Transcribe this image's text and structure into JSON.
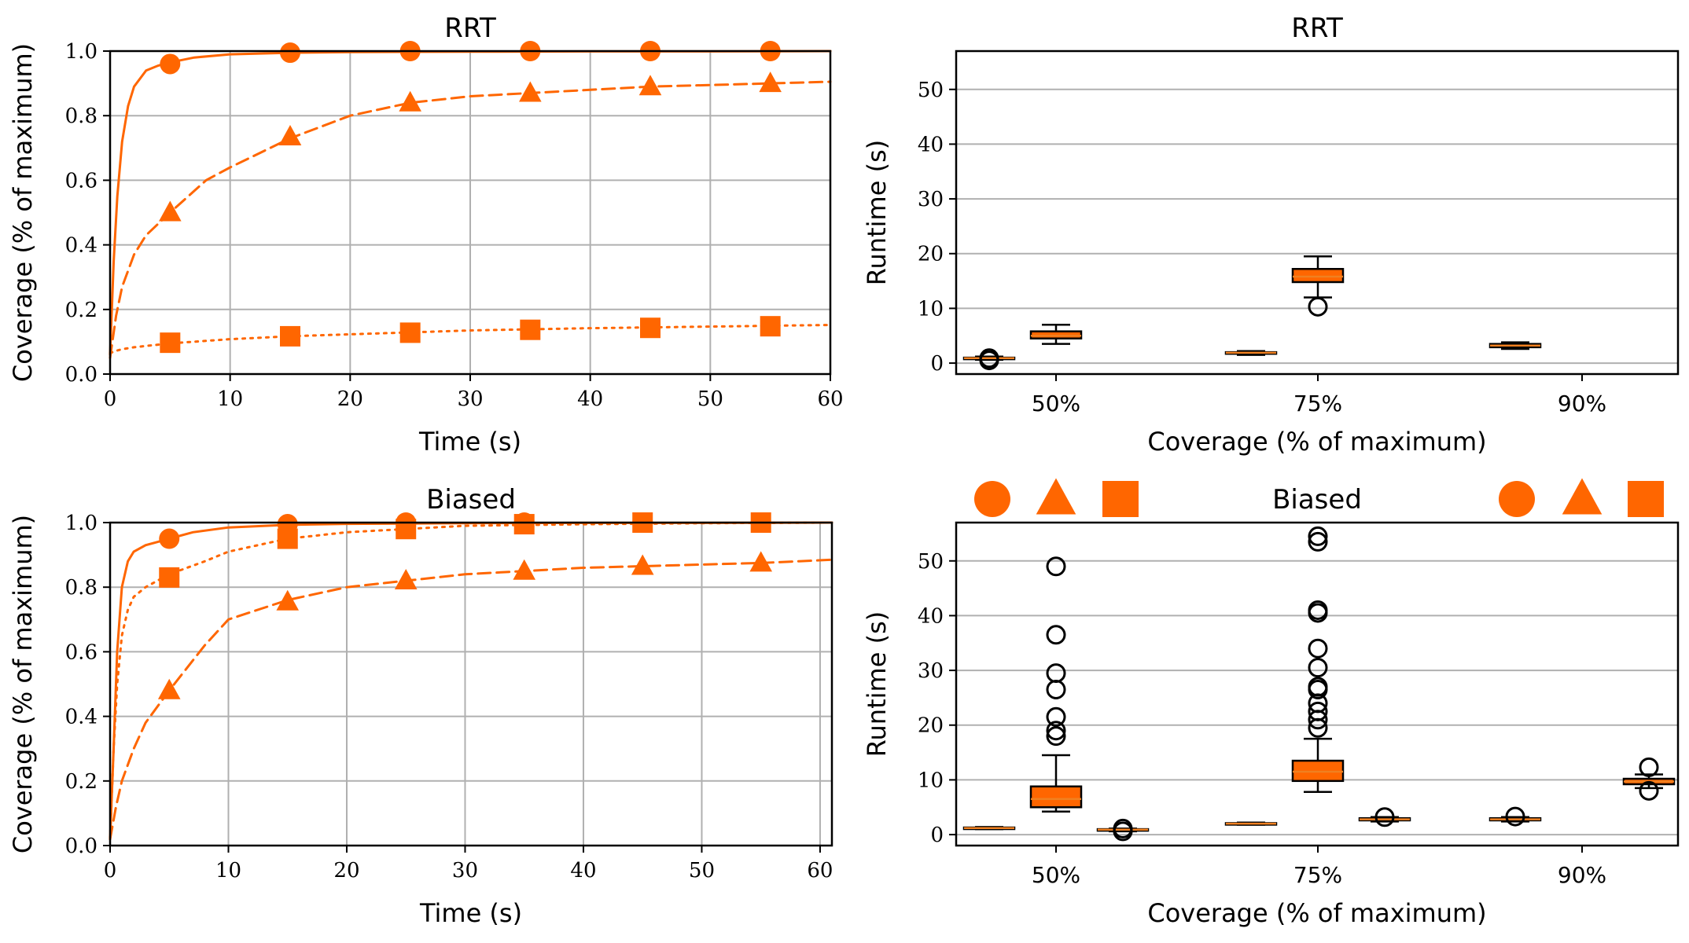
{
  "chart_data": [
    {
      "id": "tl",
      "type": "line",
      "title": "RRT",
      "xlabel": "Time (s)",
      "ylabel": "Coverage (% of maximum)",
      "xlim": [
        0,
        60
      ],
      "ylim": [
        0,
        1
      ],
      "xticks": [
        0,
        10,
        20,
        30,
        40,
        50,
        60
      ],
      "yticks": [
        0.0,
        0.2,
        0.4,
        0.6,
        0.8,
        1.0
      ],
      "xtick_labels": [
        "0",
        "10",
        "20",
        "30",
        "40",
        "50",
        "60"
      ],
      "ytick_labels": [
        "0.0",
        "0.2",
        "0.4",
        "0.6",
        "0.8",
        "1.0"
      ],
      "color": "#ff6600",
      "series": [
        {
          "marker": "circle",
          "style": "solid",
          "x": [
            0,
            0.3,
            0.6,
            1,
            1.5,
            2,
            3,
            4,
            5,
            7,
            10,
            15,
            20,
            30,
            40,
            50,
            60
          ],
          "y": [
            0.06,
            0.35,
            0.55,
            0.72,
            0.83,
            0.89,
            0.94,
            0.955,
            0.965,
            0.98,
            0.99,
            0.995,
            0.997,
            0.998,
            0.999,
            0.999,
            1.0
          ],
          "marker_x": [
            5,
            15,
            25,
            35,
            45,
            55
          ],
          "marker_y": [
            0.96,
            0.995,
            1.0,
            1.0,
            1.0,
            1.0
          ]
        },
        {
          "marker": "triangle",
          "style": "dashed",
          "x": [
            0,
            0.5,
            1,
            2,
            3,
            5,
            8,
            10,
            15,
            20,
            25,
            30,
            35,
            40,
            45,
            50,
            55,
            60
          ],
          "y": [
            0.05,
            0.18,
            0.27,
            0.37,
            0.43,
            0.5,
            0.6,
            0.64,
            0.73,
            0.8,
            0.84,
            0.86,
            0.87,
            0.88,
            0.89,
            0.895,
            0.9,
            0.905
          ],
          "marker_x": [
            5,
            15,
            25,
            35,
            45,
            55
          ],
          "marker_y": [
            0.5,
            0.735,
            0.84,
            0.87,
            0.89,
            0.9
          ]
        },
        {
          "marker": "square",
          "style": "dotted",
          "x": [
            0,
            0.5,
            1,
            2,
            3,
            5,
            10,
            15,
            20,
            30,
            40,
            50,
            60
          ],
          "y": [
            0.065,
            0.072,
            0.077,
            0.083,
            0.087,
            0.095,
            0.108,
            0.117,
            0.123,
            0.135,
            0.142,
            0.147,
            0.152
          ],
          "marker_x": [
            5,
            15,
            25,
            35,
            45,
            55
          ],
          "marker_y": [
            0.097,
            0.117,
            0.128,
            0.137,
            0.143,
            0.148
          ]
        }
      ]
    },
    {
      "id": "tr",
      "type": "box",
      "title": "RRT",
      "xlabel": "Coverage (% of maximum)",
      "ylabel": "Runtime (s)",
      "ylim": [
        -2,
        57
      ],
      "yticks": [
        0,
        10,
        20,
        30,
        40,
        50
      ],
      "ytick_labels": [
        "0",
        "10",
        "20",
        "30",
        "40",
        "50"
      ],
      "categories": [
        "50%",
        "75%",
        "90%"
      ],
      "boxes": [
        {
          "group": 0,
          "offset": -1,
          "min": 0.6,
          "q1": 0.8,
          "median": 0.9,
          "q3": 1.0,
          "max": 1.2,
          "fliers": [
            0.5,
            0.9
          ]
        },
        {
          "group": 0,
          "offset": 0,
          "min": 3.5,
          "q1": 4.5,
          "median": 5.0,
          "q3": 5.8,
          "max": 7.0,
          "fliers": []
        },
        {
          "group": 1,
          "offset": -1,
          "min": 1.5,
          "q1": 1.7,
          "median": 1.9,
          "q3": 2.0,
          "max": 2.2,
          "fliers": []
        },
        {
          "group": 1,
          "offset": 0,
          "min": 12.0,
          "q1": 14.8,
          "median": 15.8,
          "q3": 17.2,
          "max": 19.5,
          "fliers": [
            10.3
          ]
        },
        {
          "group": 2,
          "offset": -1,
          "min": 2.6,
          "q1": 2.9,
          "median": 3.2,
          "q3": 3.5,
          "max": 3.8,
          "fliers": []
        }
      ]
    },
    {
      "id": "bl",
      "type": "line",
      "title": "Biased",
      "xlabel": "Time (s)",
      "ylabel": "Coverage (% of maximum)",
      "xlim": [
        0,
        61
      ],
      "ylim": [
        0,
        1
      ],
      "xticks": [
        0,
        10,
        20,
        30,
        40,
        50,
        60
      ],
      "yticks": [
        0.0,
        0.2,
        0.4,
        0.6,
        0.8,
        1.0
      ],
      "xtick_labels": [
        "0",
        "10",
        "20",
        "30",
        "40",
        "50",
        "60"
      ],
      "ytick_labels": [
        "0.0",
        "0.2",
        "0.4",
        "0.6",
        "0.8",
        "1.0"
      ],
      "color": "#ff6600",
      "series": [
        {
          "marker": "circle",
          "style": "solid",
          "x": [
            0,
            0.3,
            0.6,
            1,
            1.5,
            2,
            3,
            4,
            5,
            7,
            10,
            15,
            20,
            30,
            40,
            50,
            61
          ],
          "y": [
            0.02,
            0.3,
            0.6,
            0.8,
            0.88,
            0.91,
            0.93,
            0.94,
            0.95,
            0.97,
            0.985,
            0.993,
            0.996,
            0.998,
            0.999,
            0.999,
            1.0
          ],
          "marker_x": [
            5,
            15,
            25,
            35,
            45,
            55
          ],
          "marker_y": [
            0.95,
            0.995,
            1.0,
            1.0,
            1.0,
            1.0
          ]
        },
        {
          "marker": "triangle",
          "style": "dashed",
          "x": [
            0,
            0.5,
            1,
            2,
            3,
            5,
            8,
            10,
            15,
            20,
            25,
            30,
            35,
            40,
            45,
            50,
            55,
            61
          ],
          "y": [
            0.02,
            0.12,
            0.2,
            0.3,
            0.38,
            0.48,
            0.62,
            0.7,
            0.76,
            0.8,
            0.82,
            0.84,
            0.85,
            0.86,
            0.865,
            0.87,
            0.875,
            0.885
          ],
          "marker_x": [
            5,
            15,
            25,
            35,
            45,
            55
          ],
          "marker_y": [
            0.48,
            0.755,
            0.82,
            0.85,
            0.865,
            0.875
          ]
        },
        {
          "marker": "square",
          "style": "dotted",
          "x": [
            0,
            0.3,
            0.6,
            1,
            1.5,
            2,
            3,
            5,
            8,
            10,
            15,
            20,
            30,
            40,
            50,
            61
          ],
          "y": [
            0.02,
            0.3,
            0.5,
            0.65,
            0.73,
            0.77,
            0.8,
            0.84,
            0.88,
            0.91,
            0.95,
            0.97,
            0.99,
            0.995,
            0.998,
            1.0
          ],
          "marker_x": [
            5,
            15,
            25,
            35,
            45,
            55
          ],
          "marker_y": [
            0.83,
            0.95,
            0.98,
            0.995,
            1.0,
            1.0
          ]
        }
      ]
    },
    {
      "id": "br",
      "type": "box",
      "title": "Biased",
      "xlabel": "Coverage (% of maximum)",
      "ylabel": "Runtime (s)",
      "ylim": [
        -2,
        57
      ],
      "yticks": [
        0,
        10,
        20,
        30,
        40,
        50
      ],
      "ytick_labels": [
        "0",
        "10",
        "20",
        "30",
        "40",
        "50"
      ],
      "categories": [
        "50%",
        "75%",
        "90%"
      ],
      "legend_markers_left": [
        "circle",
        "triangle",
        "square"
      ],
      "legend_markers_right": [
        "circle",
        "triangle",
        "square"
      ],
      "boxes": [
        {
          "group": 0,
          "offset": -1,
          "min": 1.0,
          "q1": 1.1,
          "median": 1.2,
          "q3": 1.3,
          "max": 1.4,
          "fliers": []
        },
        {
          "group": 0,
          "offset": 0,
          "min": 4.2,
          "q1": 5.0,
          "median": 6.5,
          "q3": 8.8,
          "max": 14.5,
          "fliers": [
            18.0,
            19.0,
            21.5,
            26.5,
            29.5,
            36.5,
            49.0
          ]
        },
        {
          "group": 0,
          "offset": 1,
          "min": 0.6,
          "q1": 0.8,
          "median": 0.9,
          "q3": 1.0,
          "max": 1.1,
          "fliers": [
            0.6,
            1.1
          ]
        },
        {
          "group": 1,
          "offset": -1,
          "min": 1.8,
          "q1": 1.9,
          "median": 2.0,
          "q3": 2.1,
          "max": 2.2,
          "fliers": []
        },
        {
          "group": 1,
          "offset": 0,
          "min": 7.8,
          "q1": 9.8,
          "median": 11.5,
          "q3": 13.5,
          "max": 17.5,
          "fliers": [
            19.5,
            21.0,
            22.5,
            24.0,
            26.5,
            27.0,
            30.5,
            34.0,
            40.5,
            41.0,
            53.5,
            54.5
          ]
        },
        {
          "group": 1,
          "offset": 1,
          "min": 2.4,
          "q1": 2.6,
          "median": 2.8,
          "q3": 3.0,
          "max": 3.2,
          "fliers": [
            3.2
          ]
        },
        {
          "group": 2,
          "offset": -1,
          "min": 2.4,
          "q1": 2.6,
          "median": 2.8,
          "q3": 3.0,
          "max": 3.2,
          "fliers": [
            3.3
          ]
        },
        {
          "group": 2,
          "offset": 1,
          "min": 8.5,
          "q1": 9.2,
          "median": 9.7,
          "q3": 10.2,
          "max": 11.0,
          "fliers": [
            8.0,
            12.3
          ]
        }
      ]
    }
  ]
}
